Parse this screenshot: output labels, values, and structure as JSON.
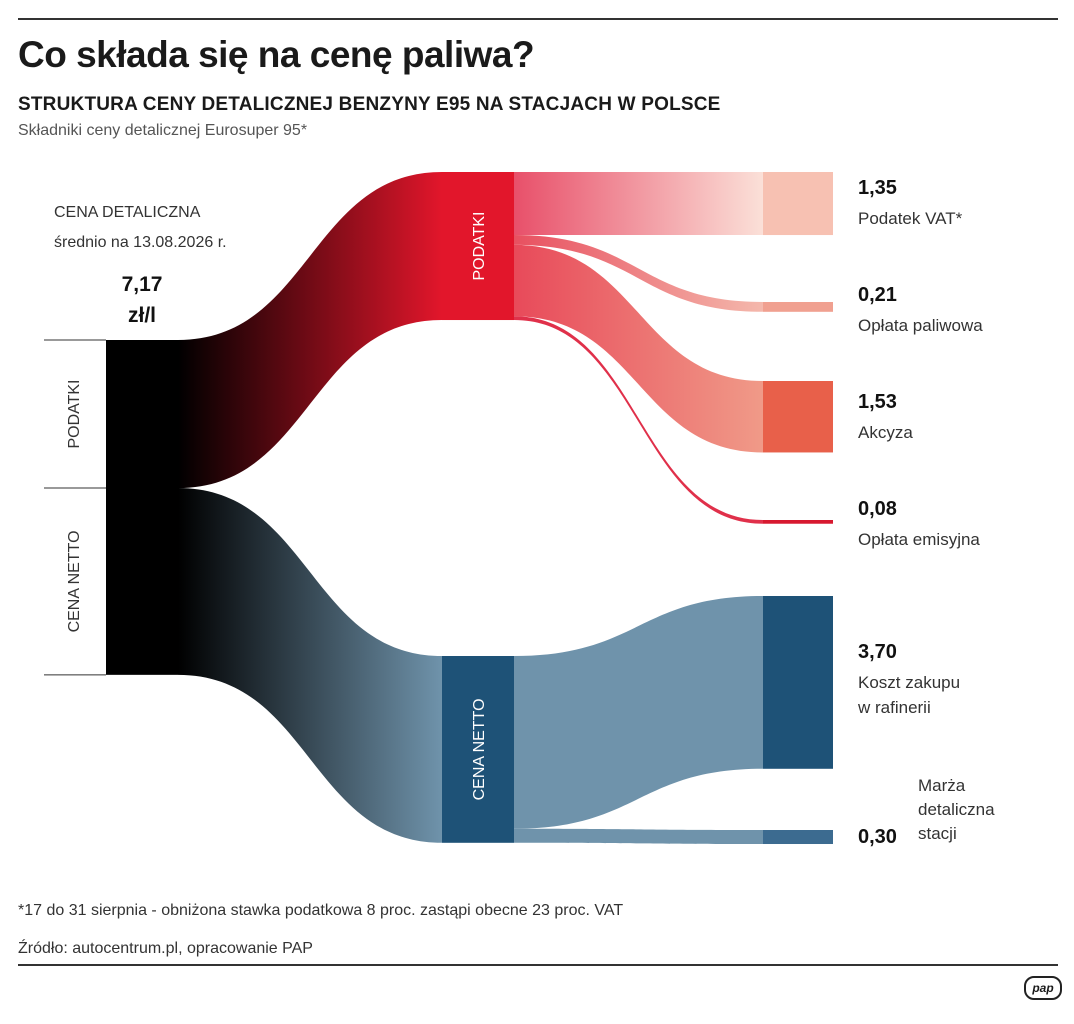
{
  "header": {
    "title": "Co składa się na cenę paliwa?",
    "subtitle": "STRUKTURA CENY DETALICZNEJ BENZYNY E95 NA STACJACH W POLSCE",
    "caption": "Składniki ceny detalicznej Eurosuper 95*"
  },
  "footer": {
    "footnote": "*17 do 31 sierpnia - obniżona stawka podatkowa 8 proc. zastąpi obecne 23 proc. VAT",
    "source": "Źródło: autocentrum.pl, opracowanie PAP",
    "logo": "PAP"
  },
  "chart_data": {
    "type": "sankey",
    "total": {
      "label_line1": "CENA DETALICZNA",
      "label_line2": "średnio na 13.08.2026 r.",
      "value": "7,17",
      "unit": "zł/l",
      "number": 7.17
    },
    "groups": [
      {
        "id": "podatki",
        "label": "PODATKI",
        "value": 3.17,
        "color": "#e2162b"
      },
      {
        "id": "netto",
        "label": "CENA NETTO",
        "value": 4.0,
        "color": "#1e5277"
      }
    ],
    "components": [
      {
        "group": "podatki",
        "value": 1.35,
        "value_text": "1,35",
        "label": "Podatek VAT*",
        "color": "#f7c1b2"
      },
      {
        "group": "podatki",
        "value": 0.21,
        "value_text": "0,21",
        "label": "Opłata paliwowa",
        "color": "#f0a090"
      },
      {
        "group": "podatki",
        "value": 1.53,
        "value_text": "1,53",
        "label": "Akcyza",
        "color": "#e8604a"
      },
      {
        "group": "podatki",
        "value": 0.08,
        "value_text": "0,08",
        "label": "Opłata emisyjna",
        "color": "#d7192f"
      },
      {
        "group": "netto",
        "value": 3.7,
        "value_text": "3,70",
        "label": "Koszt zakupu w rafinerii",
        "color": "#1e5277"
      },
      {
        "group": "netto",
        "value": 0.3,
        "value_text": "0,30",
        "label": "Marża detaliczna stacji",
        "color": "#3c6b90"
      }
    ]
  }
}
